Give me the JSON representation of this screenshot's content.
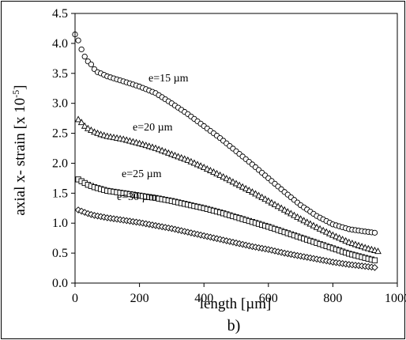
{
  "chart_data": {
    "type": "scatter",
    "xlabel": "length [µm]",
    "ylabel": "axial x- strain  [x 10",
    "ylabel_exponent": "-5",
    "ylabel_close": "]",
    "caption": "b)",
    "xlim": [
      0,
      1000
    ],
    "ylim": [
      0,
      4.5
    ],
    "xticks": [
      0,
      200,
      400,
      600,
      800,
      1000
    ],
    "xtick_labels": [
      "0",
      "200",
      "400",
      "600",
      "800",
      "1000"
    ],
    "yticks": [
      0,
      0.5,
      1,
      1.5,
      2,
      2.5,
      3,
      3.5,
      4,
      4.5
    ],
    "ytick_labels": [
      "0.0",
      "0.5",
      "1.0",
      "1.5",
      "2.0",
      "2.5",
      "3.0",
      "3.5",
      "4.0",
      "4.5"
    ],
    "grid": false,
    "legend": "none",
    "series": [
      {
        "name": "e=15 µm",
        "marker": "circle",
        "x": [
          0,
          10,
          20,
          30,
          40,
          50,
          60,
          70,
          80,
          100,
          130,
          160,
          200,
          250,
          300,
          350,
          400,
          450,
          500,
          550,
          600,
          650,
          700,
          750,
          800,
          850,
          900,
          930
        ],
        "y": [
          4.15,
          4.05,
          3.9,
          3.78,
          3.7,
          3.65,
          3.57,
          3.52,
          3.5,
          3.45,
          3.4,
          3.35,
          3.28,
          3.17,
          3.0,
          2.82,
          2.62,
          2.42,
          2.2,
          1.98,
          1.75,
          1.52,
          1.3,
          1.12,
          0.98,
          0.9,
          0.86,
          0.84
        ]
      },
      {
        "name": "e=20 µm",
        "marker": "triangle",
        "x": [
          10,
          20,
          30,
          40,
          60,
          80,
          100,
          150,
          200,
          250,
          300,
          350,
          400,
          450,
          500,
          550,
          600,
          650,
          700,
          750,
          800,
          850,
          900,
          940
        ],
        "y": [
          2.73,
          2.68,
          2.62,
          2.58,
          2.52,
          2.48,
          2.45,
          2.4,
          2.33,
          2.25,
          2.15,
          2.05,
          1.93,
          1.8,
          1.66,
          1.52,
          1.37,
          1.22,
          1.07,
          0.93,
          0.8,
          0.68,
          0.59,
          0.53
        ]
      },
      {
        "name": "e=25 µm",
        "marker": "square",
        "x": [
          10,
          20,
          30,
          40,
          60,
          80,
          100,
          150,
          200,
          250,
          300,
          350,
          400,
          450,
          500,
          550,
          600,
          650,
          700,
          750,
          800,
          850,
          900,
          930
        ],
        "y": [
          1.73,
          1.7,
          1.67,
          1.64,
          1.6,
          1.57,
          1.54,
          1.5,
          1.46,
          1.42,
          1.37,
          1.31,
          1.25,
          1.18,
          1.1,
          1.02,
          0.94,
          0.85,
          0.76,
          0.67,
          0.58,
          0.49,
          0.42,
          0.38
        ]
      },
      {
        "name": "e=30 µm",
        "marker": "diamond",
        "x": [
          10,
          20,
          30,
          40,
          60,
          80,
          100,
          150,
          200,
          250,
          300,
          350,
          400,
          450,
          500,
          550,
          600,
          650,
          700,
          750,
          800,
          850,
          900,
          930
        ],
        "y": [
          1.22,
          1.2,
          1.18,
          1.16,
          1.13,
          1.11,
          1.09,
          1.05,
          1.01,
          0.96,
          0.91,
          0.85,
          0.79,
          0.73,
          0.67,
          0.61,
          0.56,
          0.5,
          0.45,
          0.4,
          0.35,
          0.31,
          0.28,
          0.26
        ]
      }
    ]
  }
}
